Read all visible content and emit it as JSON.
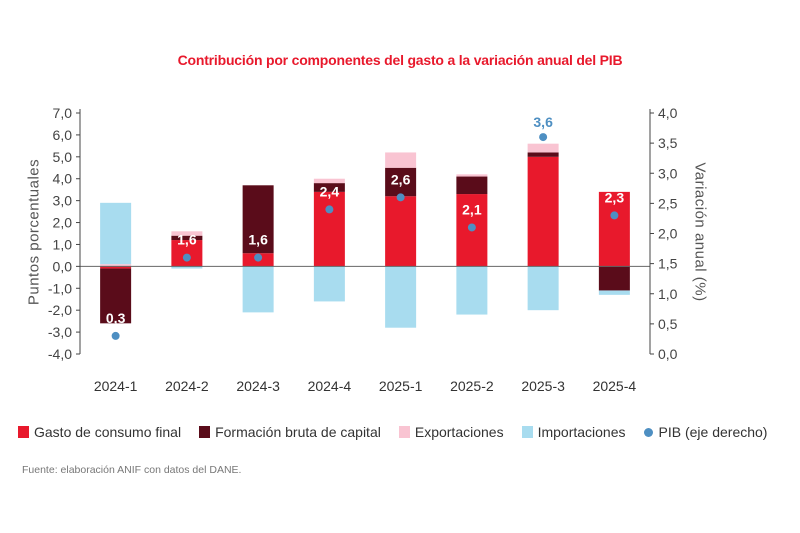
{
  "chart_data": {
    "type": "bar",
    "title": "Contribución por componentes del gasto a la variación anual del PIB",
    "ylabel": "Puntos porcentuales",
    "y2label": "Variación anual (%)",
    "ylim": [
      -4.0,
      7.0
    ],
    "y2lim": [
      0.0,
      4.0
    ],
    "yticks": [
      "7,0",
      "6,0",
      "5,0",
      "4,0",
      "3,0",
      "2,0",
      "1,0",
      "0,0",
      "-1,0",
      "-2,0",
      "-3,0",
      "-4,0"
    ],
    "y2ticks": [
      "4,0",
      "3,5",
      "3,0",
      "2,5",
      "2,0",
      "1,5",
      "1,0",
      "0,5",
      "0,0"
    ],
    "categories": [
      "2024-1",
      "2024-2",
      "2024-3",
      "2024-4",
      "2025-1",
      "2025-2",
      "2025-3",
      "2025-4"
    ],
    "series": [
      {
        "name": "Gasto de consumo final",
        "color": "#e8192c",
        "values": [
          -0.1,
          1.2,
          0.6,
          3.4,
          3.2,
          3.3,
          5.0,
          3.4
        ]
      },
      {
        "name": "Formación bruta de capital",
        "color": "#5a0c1a",
        "values": [
          -2.5,
          0.2,
          3.1,
          0.4,
          1.3,
          0.8,
          0.2,
          -1.1
        ]
      },
      {
        "name": "Exportaciones",
        "color": "#f9c4d2",
        "values": [
          0.1,
          0.2,
          0.0,
          0.2,
          0.7,
          0.1,
          0.4,
          0.0
        ]
      },
      {
        "name": "Importaciones",
        "color": "#a8dcef",
        "values": [
          2.8,
          -0.1,
          -2.1,
          -1.6,
          -2.8,
          -2.2,
          -2.0,
          -0.2
        ]
      }
    ],
    "pib": {
      "name": "PIB (eje derecho)",
      "color": "#4e8fc2",
      "values": [
        0.3,
        1.6,
        1.6,
        2.4,
        2.6,
        2.1,
        3.6,
        2.3
      ],
      "labels": [
        "0,3",
        "1,6",
        "1,6",
        "2,4",
        "2,6",
        "2,1",
        "3,6",
        "2,3"
      ]
    }
  },
  "legend": {
    "consumo": "Gasto de consumo final",
    "fbk": "Formación bruta de capital",
    "exportaciones": "Exportaciones",
    "importaciones": "Importaciones",
    "pib": "PIB (eje derecho)"
  },
  "source": "Fuente: elaboración ANIF con datos del DANE."
}
